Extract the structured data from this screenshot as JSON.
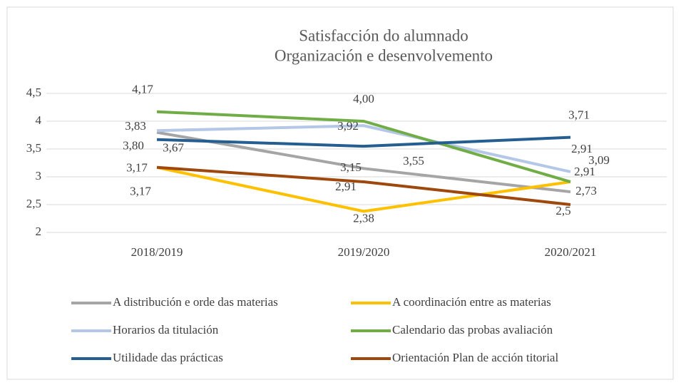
{
  "chart_data": {
    "type": "line",
    "title": "Satisfacción do alumnado",
    "subtitle": "Organización e desenvolvemento",
    "categories": [
      "2018/2019",
      "2019/2020",
      "2020/2021"
    ],
    "ylim": [
      2,
      4.5
    ],
    "yticks": [
      2,
      {
        "value": 2.5,
        "label": "2,5"
      },
      3,
      {
        "value": 3.5,
        "label": "3,5"
      },
      4,
      {
        "value": 4.5,
        "label": "4,5"
      }
    ],
    "grid": true,
    "legend": "bottom",
    "series": [
      {
        "name": "A distribución e orde das materias",
        "color": "#a5a5a5",
        "values": [
          3.8,
          3.15,
          2.73
        ],
        "value_labels": [
          "3,80",
          "3,15",
          "2,73"
        ]
      },
      {
        "name": "A coordinación entre as materias",
        "color": "#ffc000",
        "values": [
          3.17,
          2.38,
          2.91
        ],
        "value_labels": [
          "3,17",
          "2,38",
          "2,91"
        ]
      },
      {
        "name": "Horarios da titulación",
        "color": "#b4c7e7",
        "values": [
          3.83,
          3.92,
          3.09
        ],
        "value_labels": [
          "3,83",
          "3,92",
          "3,09"
        ]
      },
      {
        "name": "Calendario das probas avaliación",
        "color": "#70ad47",
        "values": [
          4.17,
          4.0,
          2.91
        ],
        "value_labels": [
          "4,17",
          "4,00",
          "2,91"
        ]
      },
      {
        "name": "Utilidade das prácticas",
        "color": "#255e91",
        "values": [
          3.67,
          3.55,
          3.71
        ],
        "value_labels": [
          "3,67",
          "3,55",
          "3,71"
        ]
      },
      {
        "name": "Orientación Plan de acción titorial",
        "color": "#9e480e",
        "values": [
          3.17,
          2.91,
          2.5
        ],
        "value_labels": [
          "3,17",
          "2,91",
          "2,5"
        ]
      }
    ]
  }
}
